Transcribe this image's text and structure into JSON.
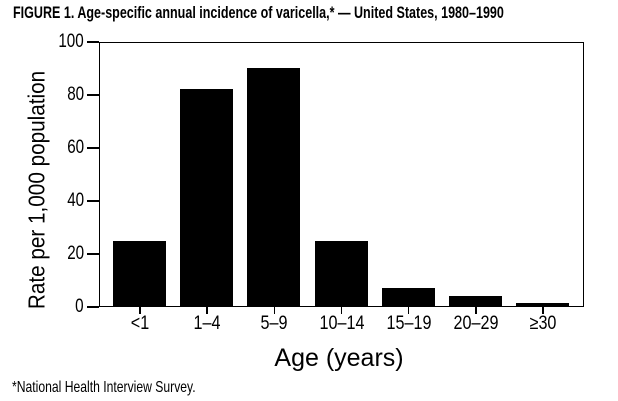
{
  "figure": {
    "title": "FIGURE 1. Age-specific annual incidence of varicella,* — United States, 1980–1990",
    "footnote": "*National Health Interview Survey."
  },
  "chart_data": {
    "type": "bar",
    "title": "FIGURE 1. Age-specific annual incidence of varicella,* — United States, 1980–1990",
    "categories": [
      "<1",
      "1–4",
      "5–9",
      "10–14",
      "15–19",
      "20–29",
      "≥30"
    ],
    "values": [
      25,
      83,
      91,
      25,
      7,
      4,
      1
    ],
    "xlabel": "Age (years)",
    "ylabel": "Rate per 1,000 population",
    "ylim": [
      0,
      100
    ],
    "yticks": [
      0,
      20,
      40,
      60,
      80,
      100
    ],
    "grid": false,
    "legend": "none",
    "bar_color": "#000000",
    "frame": true,
    "footnote": "*National Health Interview Survey."
  }
}
